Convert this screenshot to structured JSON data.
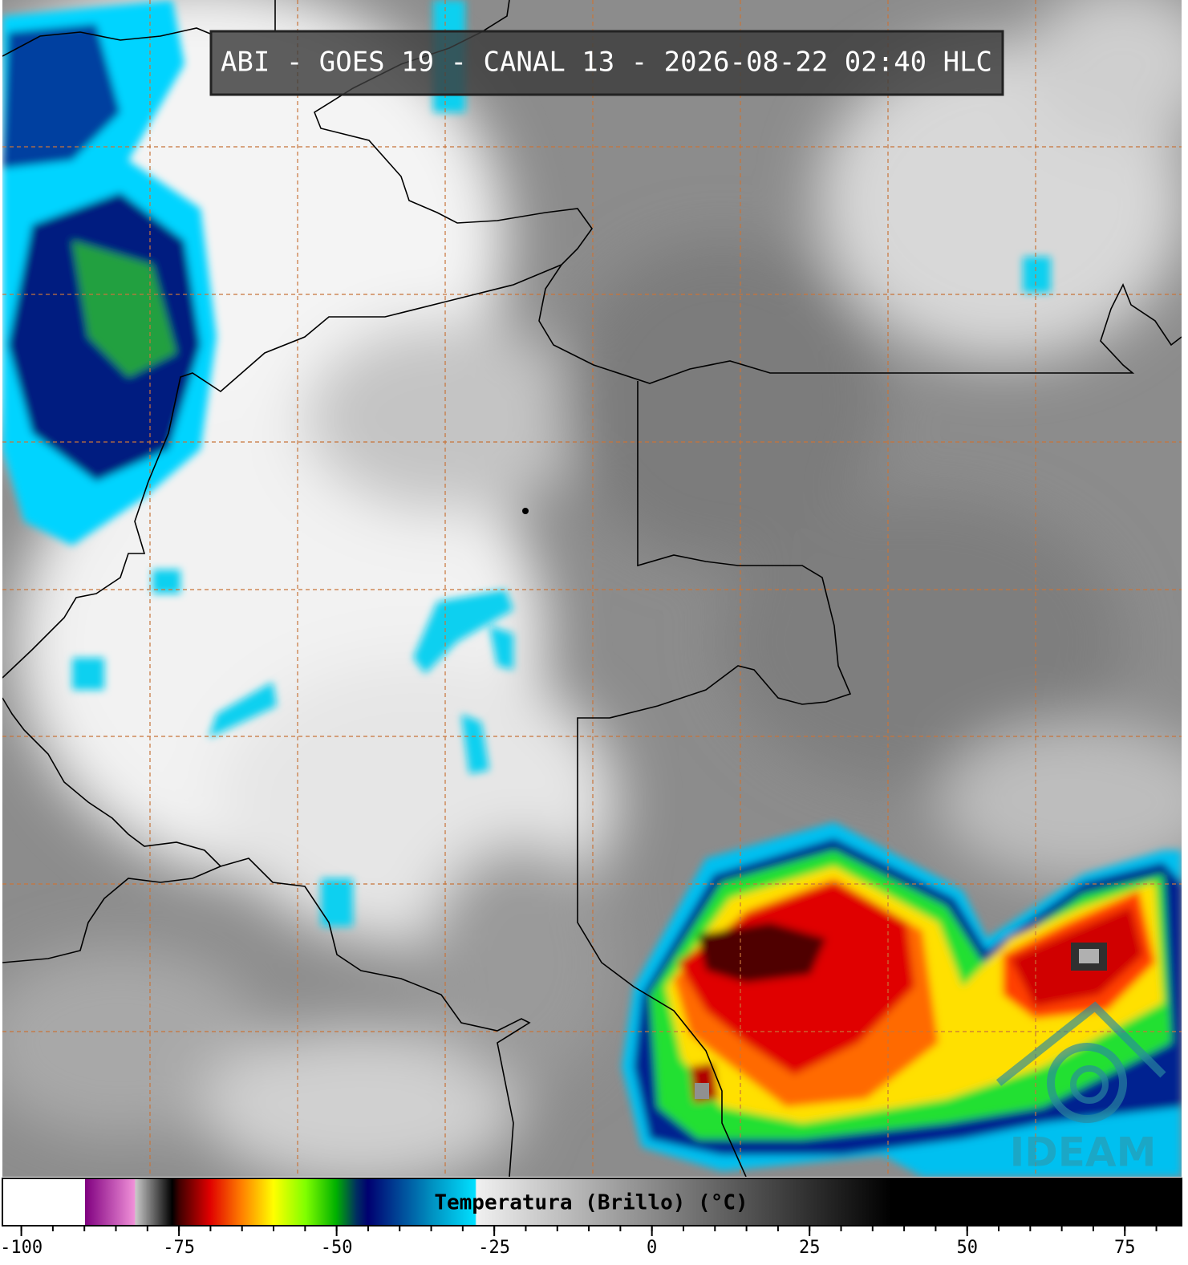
{
  "title": "ABI - GOES 19 - CANAL 13 - 2026-08-22 02:40 HLC",
  "logo": "IDEAM",
  "colorbar": {
    "label": "Temperatura (Brillo) (°C)",
    "lim": [
      -103,
      84
    ],
    "ticks": [
      -100,
      -75,
      -50,
      -25,
      0,
      25,
      50,
      75
    ]
  }
}
